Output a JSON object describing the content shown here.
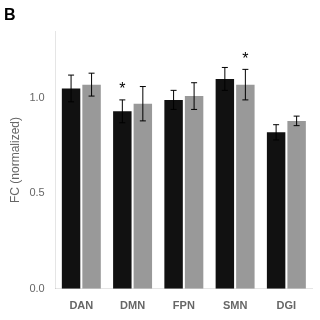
{
  "chart_data": {
    "type": "bar",
    "title": "B",
    "categories": [
      "DAN",
      "DMN",
      "FPN",
      "SMN",
      "DGI"
    ],
    "series": [
      {
        "color": "#111111",
        "values": [
          1.05,
          0.93,
          0.99,
          1.1,
          0.82
        ],
        "errors": [
          0.07,
          0.06,
          0.05,
          0.06,
          0.04
        ]
      },
      {
        "color": "#999999",
        "values": [
          1.07,
          0.97,
          1.01,
          1.07,
          0.88
        ],
        "errors": [
          0.06,
          0.09,
          0.07,
          0.08,
          0.025
        ]
      }
    ],
    "annotations": [
      {
        "text": "*",
        "category": "DMN",
        "series": 0
      },
      {
        "text": "*",
        "category": "SMN",
        "series": 1
      }
    ],
    "ylabel": "FC (normalized)",
    "ylim": [
      0.0,
      1.35
    ],
    "yticks": [
      {
        "value": 0,
        "label": "0.0"
      },
      0.5,
      {
        "value": 1,
        "label": "1.0"
      }
    ],
    "grid": false
  }
}
